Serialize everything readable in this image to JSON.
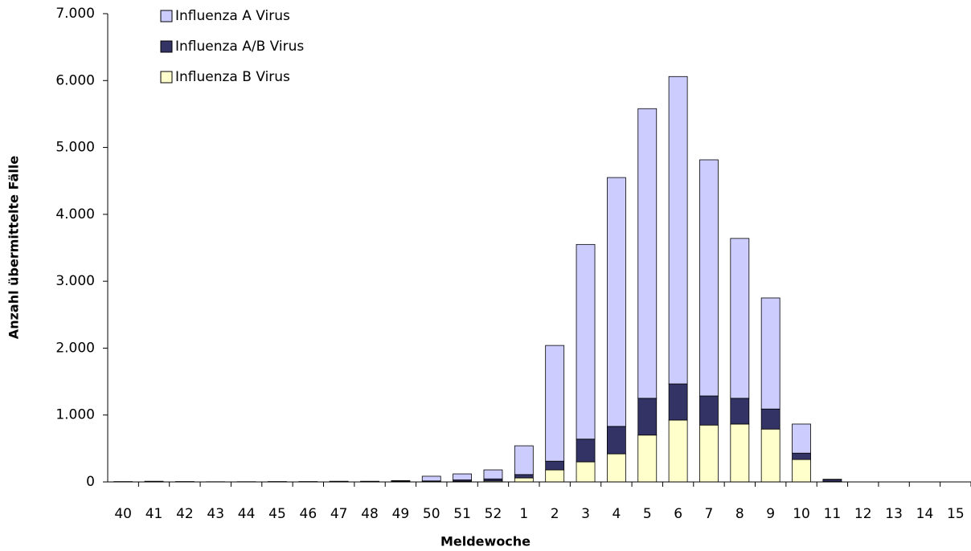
{
  "chart_data": {
    "type": "stacked-bar",
    "x_label": "Meldewoche",
    "y_label": "Anzahl übermittelte Fälle",
    "categories": [
      "40",
      "41",
      "42",
      "43",
      "44",
      "45",
      "46",
      "47",
      "48",
      "49",
      "50",
      "51",
      "52",
      "1",
      "2",
      "3",
      "4",
      "5",
      "6",
      "7",
      "8",
      "9",
      "10",
      "11",
      "12",
      "13",
      "14",
      "15"
    ],
    "series": [
      {
        "name": "Influenza B Virus",
        "color": "#ffffcc",
        "values": [
          0,
          2,
          1,
          0,
          1,
          1,
          1,
          2,
          2,
          4,
          5,
          10,
          15,
          60,
          180,
          300,
          420,
          700,
          925,
          850,
          865,
          790,
          335,
          5,
          0,
          0,
          0,
          0
        ]
      },
      {
        "name": "Influenza A/B Virus",
        "color": "#333366",
        "values": [
          2,
          3,
          2,
          1,
          1,
          2,
          2,
          3,
          3,
          6,
          10,
          20,
          30,
          50,
          130,
          340,
          410,
          550,
          540,
          435,
          385,
          300,
          95,
          30,
          0,
          0,
          0,
          0
        ]
      },
      {
        "name": "Influenza A Virus",
        "color": "#ccccff",
        "values": [
          3,
          5,
          2,
          2,
          1,
          2,
          2,
          5,
          5,
          10,
          70,
          90,
          135,
          430,
          1730,
          2910,
          3720,
          4330,
          4595,
          3530,
          2390,
          1660,
          435,
          5,
          0,
          0,
          0,
          0
        ]
      }
    ],
    "ylim": [
      0,
      7000
    ],
    "yticks": [
      0,
      {
        "value": 1000,
        "label": "1.000"
      },
      {
        "value": 2000,
        "label": "2.000"
      },
      {
        "value": 3000,
        "label": "3.000"
      },
      {
        "value": 4000,
        "label": "4.000"
      },
      {
        "value": 5000,
        "label": "5.000"
      },
      {
        "value": 6000,
        "label": "6.000"
      },
      {
        "value": 7000,
        "label": "7.000"
      }
    ],
    "legend": "top-left"
  }
}
